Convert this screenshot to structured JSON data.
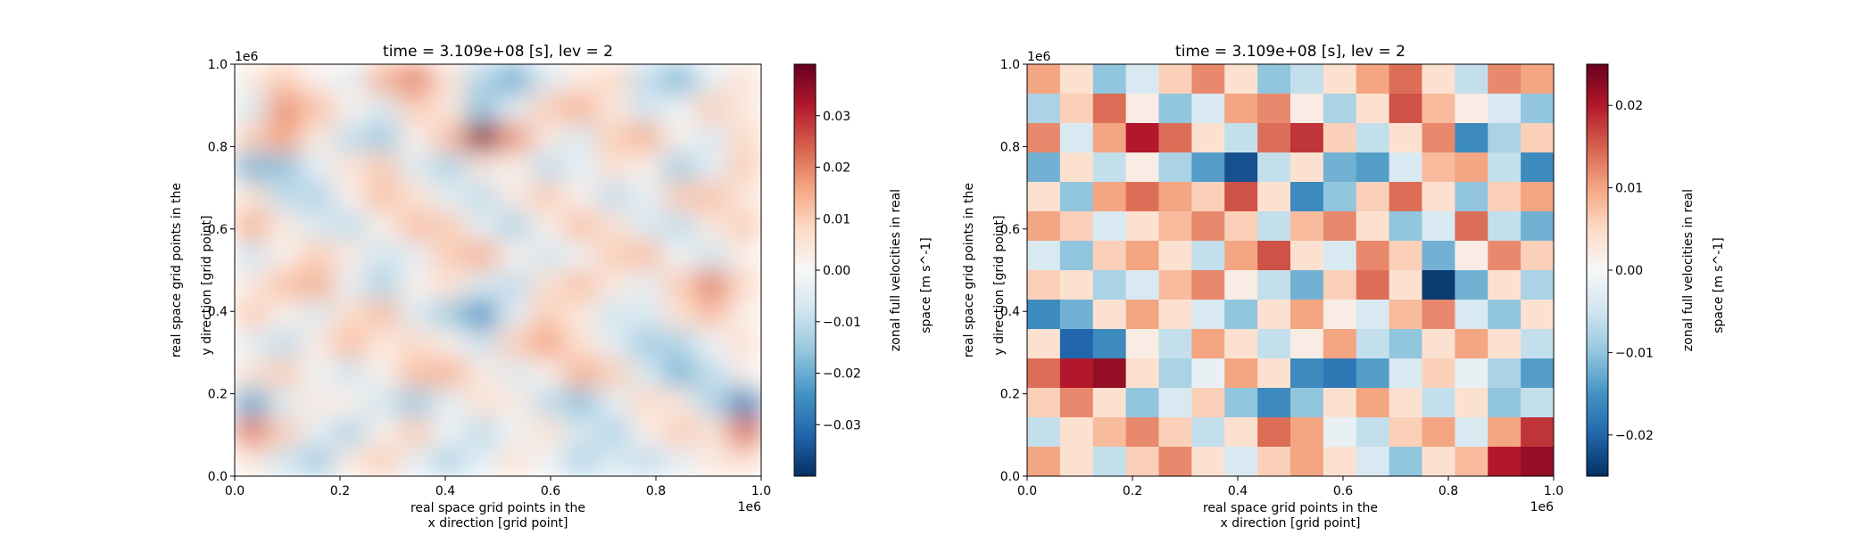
{
  "chart_data": [
    {
      "type": "heatmap",
      "title": "time = 3.109e+08 [s], lev = 2",
      "xlabel": [
        "real space grid points in the",
        "x direction [grid point]"
      ],
      "ylabel": [
        "real space grid points in the",
        "y direction [grid point]"
      ],
      "xlim": [
        0.0,
        1.0
      ],
      "ylim": [
        0.0,
        1.0
      ],
      "x_offset_text": "1e6",
      "y_offset_text": "1e6",
      "xticks": [
        0.0,
        0.2,
        0.4,
        0.6,
        0.8,
        1.0
      ],
      "xtick_labels": [
        "0.0",
        "0.2",
        "0.4",
        "0.6",
        "0.8",
        "1.0"
      ],
      "yticks": [
        0.0,
        0.2,
        0.4,
        0.6,
        0.8,
        1.0
      ],
      "ytick_labels": [
        "0.0",
        "0.2",
        "0.4",
        "0.6",
        "0.8",
        "1.0"
      ],
      "colormap": "RdBu_r",
      "smooth": true,
      "colorbar": {
        "label": [
          "zonal full velocities in real",
          "space [m s^-1]"
        ],
        "vmin": -0.04,
        "vmax": 0.04,
        "ticks": [
          -0.03,
          -0.02,
          -0.01,
          0.0,
          0.01,
          0.02,
          0.03
        ],
        "tick_labels": [
          "−0.03",
          "−0.02",
          "−0.01",
          "0.00",
          "0.01",
          "0.02",
          "0.03"
        ]
      },
      "z": [
        [
          0.004,
          0.01,
          0.002,
          -0.004,
          0.014,
          0.02,
          0.006,
          -0.012,
          -0.02,
          -0.006,
          0.004,
          0.008,
          -0.01,
          -0.018,
          -0.004,
          0.006
        ],
        [
          -0.006,
          0.018,
          0.012,
          0.002,
          -0.006,
          0.01,
          0.004,
          -0.016,
          -0.004,
          0.01,
          0.014,
          0.004,
          -0.008,
          -0.002,
          0.01,
          0.004
        ],
        [
          0.01,
          0.016,
          0.004,
          -0.01,
          -0.014,
          0.002,
          0.012,
          0.036,
          0.018,
          0.004,
          -0.006,
          0.01,
          0.014,
          0.002,
          -0.006,
          0.008
        ],
        [
          -0.018,
          -0.016,
          -0.004,
          0.006,
          0.01,
          -0.006,
          -0.012,
          0.004,
          0.002,
          -0.01,
          -0.004,
          0.006,
          0.002,
          -0.014,
          -0.004,
          0.01
        ],
        [
          0.006,
          -0.01,
          -0.012,
          0.002,
          0.012,
          0.006,
          -0.004,
          -0.01,
          0.004,
          0.01,
          0.002,
          -0.01,
          -0.004,
          0.01,
          0.012,
          0.004
        ],
        [
          0.014,
          0.004,
          -0.006,
          -0.01,
          0.002,
          0.012,
          0.01,
          -0.004,
          -0.012,
          0.002,
          0.012,
          0.006,
          -0.006,
          -0.01,
          0.004,
          0.01
        ],
        [
          -0.008,
          0.002,
          0.01,
          0.004,
          -0.008,
          -0.004,
          0.01,
          0.014,
          0.002,
          -0.008,
          -0.002,
          0.01,
          0.012,
          -0.002,
          -0.008,
          0.002
        ],
        [
          0.004,
          0.012,
          0.014,
          -0.004,
          -0.012,
          0.002,
          0.006,
          -0.006,
          -0.01,
          0.006,
          0.012,
          0.004,
          -0.004,
          0.01,
          0.02,
          0.008
        ],
        [
          0.01,
          0.002,
          -0.006,
          0.008,
          0.012,
          -0.006,
          -0.014,
          -0.024,
          -0.004,
          0.01,
          0.004,
          -0.008,
          -0.006,
          0.006,
          0.012,
          0.002
        ],
        [
          -0.004,
          -0.01,
          0.004,
          0.012,
          0.004,
          0.008,
          0.002,
          -0.008,
          0.01,
          0.016,
          0.006,
          -0.004,
          -0.014,
          -0.012,
          -0.002,
          0.006
        ],
        [
          0.006,
          0.01,
          -0.002,
          -0.008,
          0.002,
          0.012,
          0.014,
          0.004,
          -0.006,
          0.002,
          0.014,
          0.01,
          -0.006,
          -0.018,
          -0.01,
          0.002
        ],
        [
          -0.02,
          -0.006,
          0.004,
          0.002,
          -0.008,
          -0.014,
          -0.004,
          0.006,
          0.004,
          -0.01,
          -0.016,
          -0.004,
          0.008,
          0.004,
          -0.012,
          -0.026
        ],
        [
          0.02,
          0.01,
          -0.004,
          -0.012,
          0.002,
          0.01,
          -0.002,
          -0.01,
          -0.002,
          0.006,
          -0.006,
          -0.012,
          0.002,
          0.01,
          0.006,
          0.022
        ],
        [
          0.004,
          -0.008,
          -0.014,
          0.004,
          0.01,
          -0.004,
          -0.012,
          -0.004,
          0.006,
          -0.002,
          -0.012,
          -0.006,
          -0.01,
          -0.004,
          0.004,
          0.006
        ]
      ]
    },
    {
      "type": "heatmap",
      "title": "time = 3.109e+08 [s], lev = 2",
      "xlabel": [
        "real space grid points in the",
        "x direction [grid point]"
      ],
      "ylabel": [
        "real space grid points in the",
        "y direction [grid point]"
      ],
      "xlim": [
        0.0,
        1.0
      ],
      "ylim": [
        0.0,
        1.0
      ],
      "x_offset_text": "1e6",
      "y_offset_text": "1e6",
      "xticks": [
        0.0,
        0.2,
        0.4,
        0.6,
        0.8,
        1.0
      ],
      "xtick_labels": [
        "0.0",
        "0.2",
        "0.4",
        "0.6",
        "0.8",
        "1.0"
      ],
      "yticks": [
        0.0,
        0.2,
        0.4,
        0.6,
        0.8,
        1.0
      ],
      "ytick_labels": [
        "0.0",
        "0.2",
        "0.4",
        "0.6",
        "0.8",
        "1.0"
      ],
      "colormap": "RdBu_r",
      "smooth": false,
      "colorbar": {
        "label": [
          "zonal full velocities in real",
          "space [m s^-1]"
        ],
        "vmin": -0.025,
        "vmax": 0.025,
        "ticks": [
          -0.02,
          -0.01,
          0.0,
          0.01,
          0.02
        ],
        "tick_labels": [
          "−0.02",
          "−0.01",
          "0.00",
          "0.01",
          "0.02"
        ]
      },
      "z": [
        [
          0.01,
          0.004,
          -0.01,
          -0.004,
          0.006,
          0.012,
          0.004,
          -0.01,
          -0.006,
          0.004,
          0.01,
          0.014,
          0.004,
          -0.006,
          0.012,
          0.01
        ],
        [
          -0.008,
          0.006,
          0.014,
          0.002,
          -0.01,
          -0.004,
          0.01,
          0.012,
          0.002,
          -0.008,
          0.004,
          0.016,
          0.008,
          0.002,
          -0.004,
          -0.01
        ],
        [
          0.012,
          -0.004,
          0.01,
          0.02,
          0.014,
          0.004,
          -0.006,
          0.014,
          0.018,
          0.006,
          -0.006,
          0.004,
          0.012,
          -0.016,
          -0.008,
          0.006
        ],
        [
          -0.012,
          0.004,
          -0.006,
          0.002,
          -0.008,
          -0.014,
          -0.022,
          -0.006,
          0.004,
          -0.012,
          -0.014,
          -0.004,
          0.008,
          0.01,
          -0.006,
          -0.016
        ],
        [
          0.004,
          -0.01,
          0.01,
          0.014,
          0.01,
          0.006,
          0.016,
          0.004,
          -0.016,
          -0.01,
          0.006,
          0.014,
          0.004,
          -0.01,
          0.006,
          0.01
        ],
        [
          0.01,
          0.006,
          -0.004,
          0.004,
          0.008,
          0.012,
          0.006,
          -0.006,
          0.008,
          0.012,
          0.004,
          -0.01,
          -0.004,
          0.014,
          -0.006,
          -0.012
        ],
        [
          -0.004,
          -0.01,
          0.006,
          0.01,
          0.004,
          -0.006,
          0.01,
          0.016,
          0.004,
          -0.004,
          0.012,
          0.006,
          -0.012,
          0.002,
          0.012,
          0.006
        ],
        [
          0.006,
          0.004,
          -0.008,
          -0.004,
          0.008,
          0.012,
          0.002,
          -0.006,
          -0.012,
          0.006,
          0.014,
          0.004,
          -0.024,
          -0.012,
          0.004,
          -0.008
        ],
        [
          -0.016,
          -0.012,
          0.004,
          0.01,
          0.004,
          -0.004,
          -0.01,
          0.004,
          0.01,
          0.002,
          -0.004,
          0.008,
          0.012,
          -0.004,
          -0.01,
          0.004
        ],
        [
          0.004,
          -0.02,
          -0.016,
          0.002,
          -0.006,
          0.01,
          0.004,
          -0.006,
          0.002,
          0.01,
          -0.006,
          -0.01,
          0.004,
          0.01,
          0.004,
          -0.006
        ],
        [
          0.014,
          0.02,
          0.022,
          0.004,
          -0.008,
          -0.002,
          0.01,
          0.004,
          -0.016,
          -0.018,
          -0.014,
          -0.004,
          0.006,
          -0.002,
          -0.008,
          -0.014
        ],
        [
          0.006,
          0.012,
          0.004,
          -0.01,
          -0.004,
          0.006,
          -0.01,
          -0.016,
          -0.01,
          0.004,
          0.01,
          0.004,
          -0.006,
          0.004,
          -0.01,
          -0.006
        ],
        [
          -0.006,
          0.004,
          0.008,
          0.012,
          0.006,
          -0.006,
          0.004,
          0.014,
          0.01,
          -0.002,
          -0.006,
          0.006,
          0.01,
          -0.004,
          0.01,
          0.018
        ],
        [
          0.01,
          0.004,
          -0.006,
          0.006,
          0.012,
          0.004,
          -0.004,
          0.006,
          0.01,
          0.004,
          -0.004,
          -0.01,
          0.004,
          0.008,
          0.02,
          0.022
        ]
      ]
    }
  ]
}
